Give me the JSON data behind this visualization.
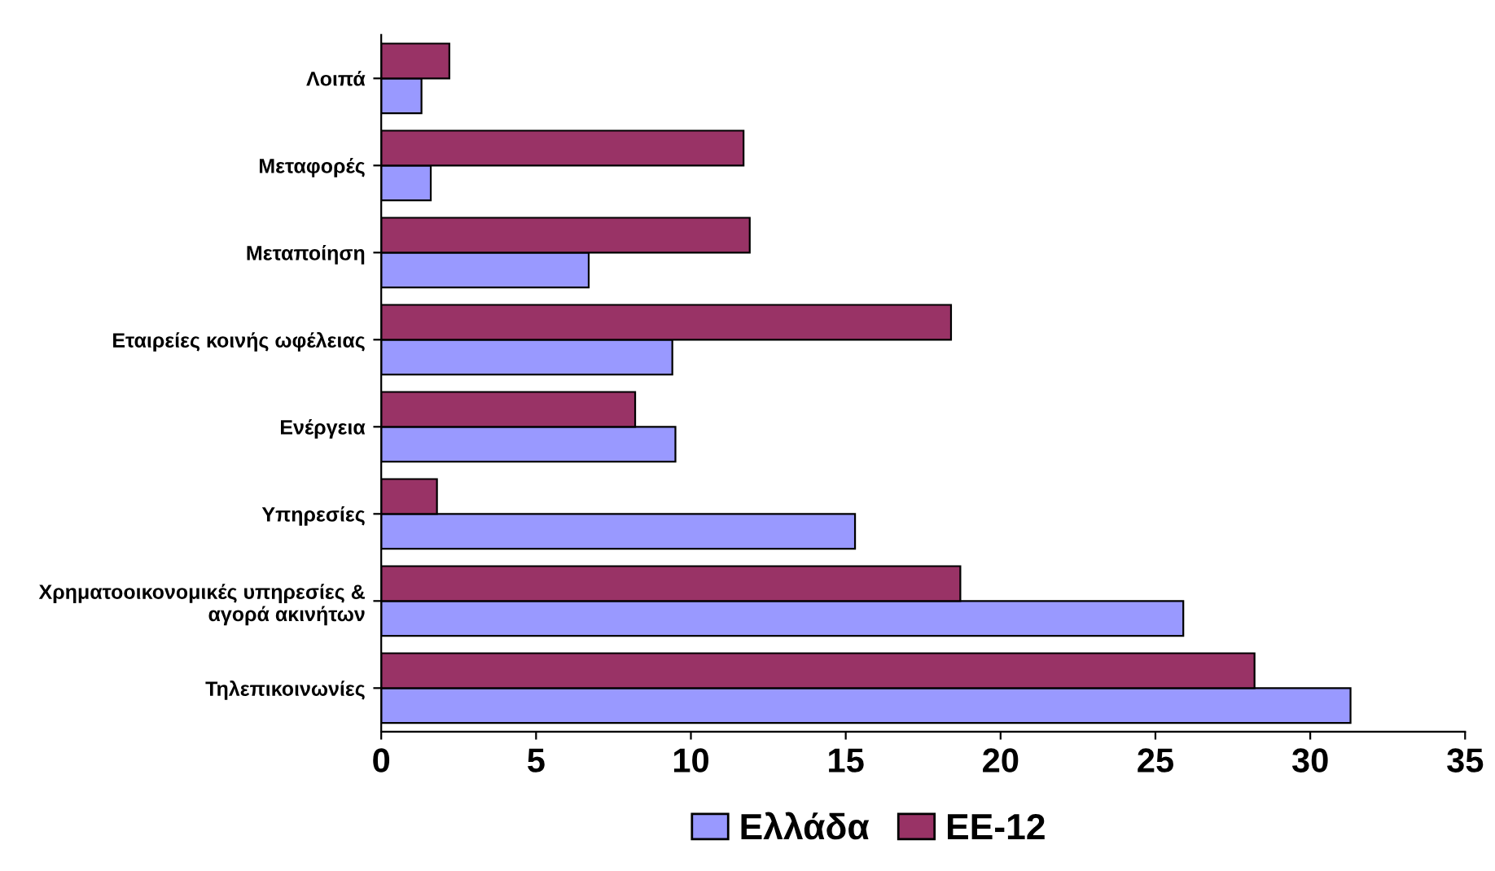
{
  "chart_data": {
    "type": "bar",
    "orientation": "horizontal",
    "categories": [
      "Λοιπά",
      "Μεταφορές",
      "Μεταποίηση",
      "Εταιρείες κοινής ωφέλειας",
      "Ενέργεια",
      "Υπηρεσίες",
      "Χρηματοοικονομικές υπηρεσίες &\nαγορά ακινήτων",
      "Τηλεπικοινωνίες"
    ],
    "series": [
      {
        "name": "Ελλάδα",
        "color": "#9999ff",
        "values": [
          1.3,
          1.6,
          6.7,
          9.4,
          9.5,
          15.3,
          25.9,
          31.3
        ]
      },
      {
        "name": "ΕΕ-12",
        "color": "#993366",
        "values": [
          2.2,
          11.7,
          11.9,
          18.4,
          8.2,
          1.8,
          18.7,
          28.2
        ]
      }
    ],
    "xlim": [
      0,
      35
    ],
    "xticks": [
      0,
      5,
      10,
      15,
      20,
      25,
      30,
      35
    ],
    "grid": false,
    "legend": "bottom"
  }
}
